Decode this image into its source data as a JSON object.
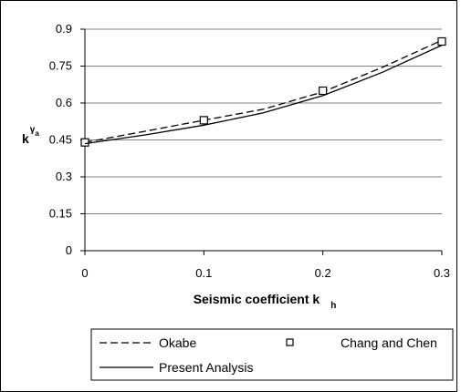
{
  "chart_data": {
    "type": "line",
    "xlabel": "Seismic coefficient k",
    "xlabel_subscript": "h",
    "ylabel": "k",
    "ylabel_superscript": "γ",
    "ylabel_superscript_sub": "a",
    "xlim": [
      0,
      0.3
    ],
    "ylim": [
      0,
      0.9
    ],
    "x_ticks": [
      "0",
      "0.1",
      "0.2",
      "0.3"
    ],
    "y_ticks": [
      "0",
      "0.15",
      "0.3",
      "0.45",
      "0.6",
      "0.75",
      "0.9"
    ],
    "grid": "horizontal",
    "legend_position": "bottom",
    "series": [
      {
        "name": "Okabe",
        "style": "dashed",
        "color": "#000000",
        "x": [
          0,
          0.05,
          0.1,
          0.15,
          0.2,
          0.25,
          0.3
        ],
        "y": [
          0.44,
          0.485,
          0.53,
          0.575,
          0.645,
          0.745,
          0.855
        ]
      },
      {
        "name": "Chang and Chen",
        "style": "square-markers",
        "color": "#000000",
        "x": [
          0,
          0.1,
          0.2,
          0.3
        ],
        "y": [
          0.44,
          0.53,
          0.65,
          0.85
        ]
      },
      {
        "name": "Present Analysis",
        "style": "solid",
        "color": "#000000",
        "x": [
          0,
          0.05,
          0.1,
          0.15,
          0.2,
          0.25,
          0.3
        ],
        "y": [
          0.435,
          0.47,
          0.51,
          0.56,
          0.63,
          0.725,
          0.835
        ]
      }
    ]
  }
}
